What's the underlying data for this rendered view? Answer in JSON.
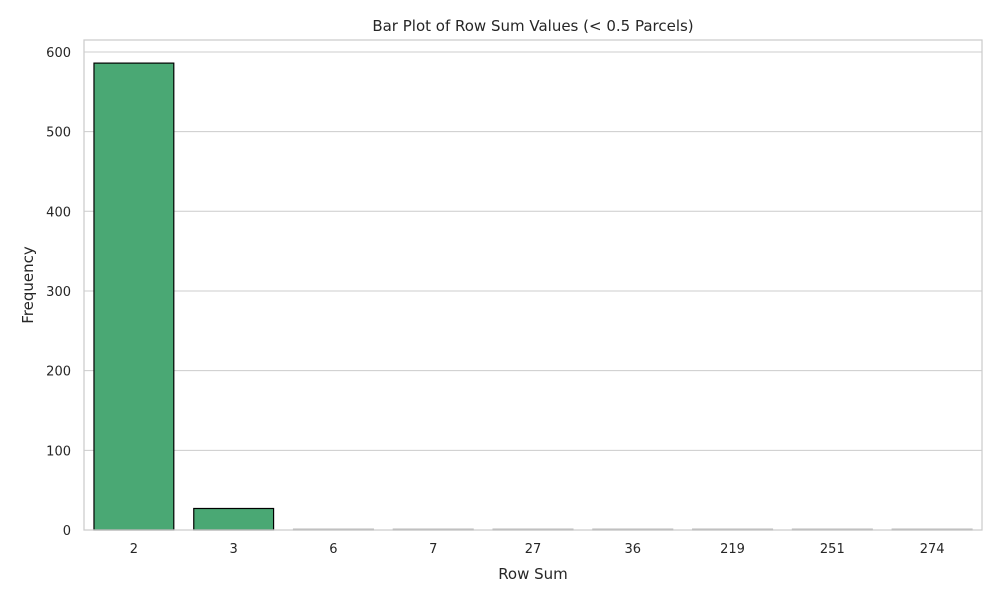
{
  "chart_data": {
    "type": "bar",
    "title": "Bar Plot of Row Sum Values (< 0.5 Parcels)",
    "xlabel": "Row Sum",
    "ylabel": "Frequency",
    "categories": [
      "2",
      "3",
      "6",
      "7",
      "27",
      "36",
      "219",
      "251",
      "274"
    ],
    "values": [
      586,
      27,
      1,
      1,
      1,
      1,
      1,
      1,
      1
    ],
    "ylim": [
      0,
      615
    ],
    "yticks": [
      0,
      100,
      200,
      300,
      400,
      500,
      600
    ],
    "grid": true,
    "legend": "none",
    "bar_color": "#4aa874",
    "bar_edge_color": "#000000"
  }
}
